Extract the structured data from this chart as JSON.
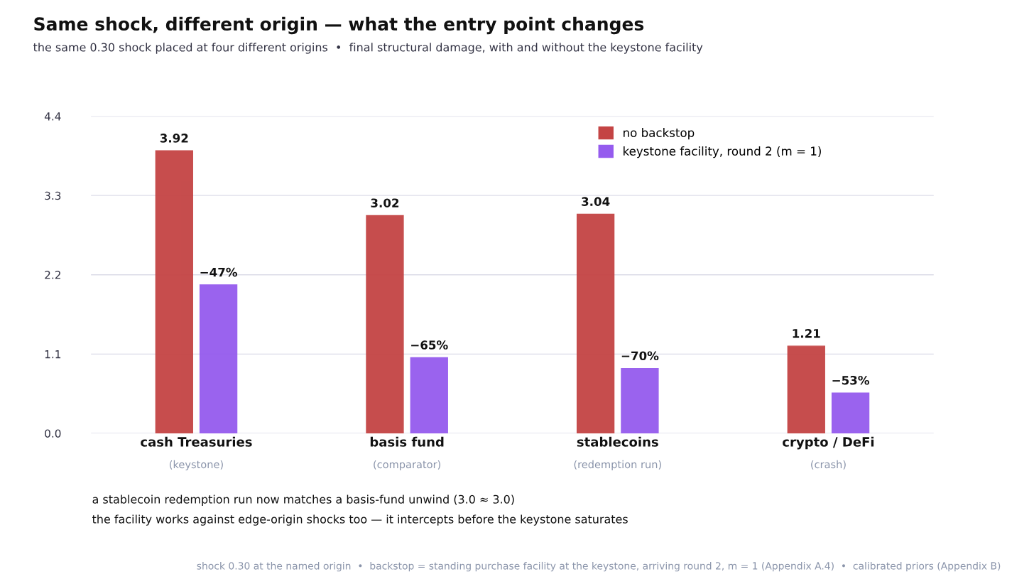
{
  "chart_data": {
    "type": "bar",
    "title": "Same shock, different origin — what the entry point changes",
    "subtitle": "the same 0.30 shock placed at four different origins  •  final structural damage, with and without the keystone facility",
    "categories": [
      "cash Treasuries\n(keystone)",
      "basis fund\n(comparator)",
      "stablecoins\n(redemption run)",
      "crypto / DeFi\n(crash)"
    ],
    "series": [
      {
        "name": "no backstop",
        "color": "#c44444",
        "values": [
          3.92,
          3.02,
          3.04,
          1.21
        ],
        "value_labels": [
          "3.92",
          "3.02",
          "3.04",
          "1.21"
        ]
      },
      {
        "name": "keystone facility, round 2 (m = 1)",
        "color": "#955bee",
        "values": [
          2.06,
          1.05,
          0.9,
          0.56
        ]
      }
    ],
    "ylim": [
      0,
      4.4
    ],
    "yticks": [
      {
        "value": 0,
        "label": "0.0"
      },
      1.1,
      2.2,
      3.3,
      4.4
    ],
    "grid": "y",
    "legend": "top right",
    "annotations": [
      "−47%",
      "−65%",
      "−70%",
      "−53%",
      "a stablecoin redemption run now matches a basis-fund unwind (3.0 ≈ 3.0)",
      "the facility works against edge-origin shocks too — it intercepts before the keystone saturates",
      "shock 0.30 at the named origin  •  backstop = standing purchase facility at the keystone, arriving round 2, m = 1 (Appendix A.4)  •  calibrated priors (Appendix B)"
    ]
  }
}
